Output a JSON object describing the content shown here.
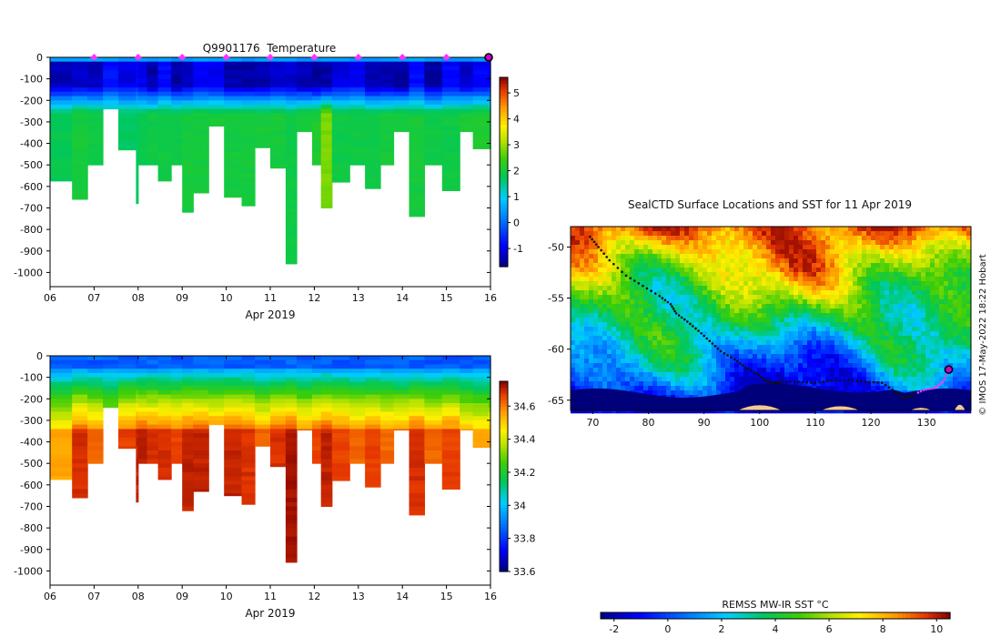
{
  "chart_data": [
    {
      "type": "heatmap",
      "title": "Q9901176  Temperature",
      "xlabel": "Apr 2019",
      "ylabel": "",
      "x_tick_labels": [
        "06",
        "07",
        "08",
        "09",
        "10",
        "11",
        "12",
        "13",
        "14",
        "15",
        "16"
      ],
      "x_range": [
        6,
        16
      ],
      "y_tick_values": [
        0,
        -100,
        -200,
        -300,
        -400,
        -500,
        -600,
        -700,
        -800,
        -900,
        -1000
      ],
      "y_range": [
        -1050,
        0
      ],
      "colorbar_ticks": [
        5,
        4,
        3,
        2,
        1,
        0,
        -1
      ],
      "colorbar_range": [
        -1.7,
        5.6
      ],
      "surface_value": 0.6,
      "profile_days": [
        6.0,
        6.5,
        6.85,
        7.2,
        7.55,
        7.95,
        8.0,
        8.2,
        8.45,
        8.75,
        9.0,
        9.25,
        9.6,
        9.95,
        10.35,
        10.65,
        11.0,
        11.35,
        11.6,
        11.95,
        12.15,
        12.4,
        12.8,
        13.15,
        13.5,
        13.8,
        14.15,
        14.5,
        14.9,
        15.3,
        15.6,
        15.95
      ],
      "profile_max_depths": [
        575,
        660,
        500,
        240,
        430,
        680,
        500,
        500,
        575,
        500,
        720,
        630,
        320,
        650,
        690,
        420,
        515,
        960,
        345,
        500,
        700,
        580,
        500,
        610,
        500,
        345,
        740,
        500,
        620,
        345,
        425,
        425
      ],
      "deep_water_values": [
        1.8,
        2.0,
        1.9,
        1.8,
        1.7,
        1.7,
        1.8,
        1.9,
        1.9,
        1.9,
        2.0,
        2.0,
        2.0,
        2.0,
        2.0,
        2.0,
        2.0,
        1.9,
        2.0,
        2.1,
        2.8,
        1.9,
        1.9,
        1.9,
        2.0,
        2.0,
        2.0,
        1.9,
        1.9,
        2.1,
        2.1,
        2.0
      ],
      "marker_days": [
        7,
        8,
        9,
        10,
        11,
        12,
        13,
        14,
        15,
        16
      ]
    },
    {
      "type": "heatmap",
      "title": "",
      "xlabel": "Apr 2019",
      "ylabel": "",
      "x_tick_labels": [
        "06",
        "07",
        "08",
        "09",
        "10",
        "11",
        "12",
        "13",
        "14",
        "15",
        "16"
      ],
      "x_range": [
        6,
        16
      ],
      "y_tick_values": [
        0,
        -100,
        -200,
        -300,
        -400,
        -500,
        -600,
        -700,
        -800,
        -900,
        -1000
      ],
      "y_range": [
        -1050,
        0
      ],
      "colorbar_ticks": [
        "34.6",
        "34.4",
        "34.2",
        "34",
        "33.8",
        "33.6"
      ],
      "colorbar_range": [
        33.6,
        34.75
      ],
      "surface_value": 33.85,
      "deep_salinity_values": [
        34.55,
        34.68,
        34.62,
        34.52,
        34.66,
        34.7,
        34.7,
        34.68,
        34.68,
        34.66,
        34.7,
        34.7,
        34.66,
        34.7,
        34.68,
        34.62,
        34.68,
        34.72,
        34.62,
        34.66,
        34.7,
        34.66,
        34.62,
        34.66,
        34.62,
        34.62,
        34.68,
        34.62,
        34.66,
        34.58,
        34.55,
        34.55
      ]
    },
    {
      "type": "heatmap",
      "title": "SealCTD Surface Locations and SST for 11 Apr 2019",
      "xlabel": "",
      "ylabel": "",
      "x_tick_labels": [
        "70",
        "80",
        "90",
        "100",
        "110",
        "120",
        "130"
      ],
      "x_range": [
        66,
        138
      ],
      "y_tick_labels": [
        "-50",
        "-55",
        "-60",
        "-65"
      ],
      "y_range": [
        -66,
        -48
      ],
      "side_note": "© IMOS 17-May-2022 18:22 Hobart",
      "colorbar_title": "REMSS MW-IR SST °C",
      "colorbar_ticks": [
        "-2",
        "0",
        "2",
        "4",
        "6",
        "8",
        "10"
      ],
      "colorbar_range": [
        -2.5,
        10.5
      ],
      "track_lon": [
        69.5,
        71.0,
        73.0,
        76.0,
        79.0,
        82.0,
        84.0,
        85.0,
        87.0,
        89.0,
        91.0,
        93.0,
        95.5,
        97.5,
        99.5,
        101.0,
        102.5,
        104.0,
        107.0,
        110.0,
        113.0,
        116.0,
        119.0,
        122.0,
        124.5,
        126.0,
        127.5,
        129.5,
        131.5,
        133.0,
        134.0
      ],
      "track_lat": [
        -49.0,
        -50.0,
        -51.3,
        -52.8,
        -53.8,
        -54.8,
        -55.6,
        -56.5,
        -57.3,
        -58.2,
        -59.2,
        -60.2,
        -61.0,
        -61.8,
        -62.4,
        -63.1,
        -63.3,
        -63.2,
        -63.2,
        -63.3,
        -63.1,
        -63.0,
        -63.2,
        -63.3,
        -64.2,
        -64.8,
        -64.5,
        -64.0,
        -63.8,
        -63.2,
        -62.0
      ],
      "current_position": {
        "lon": 134.0,
        "lat": -62.0
      }
    }
  ]
}
